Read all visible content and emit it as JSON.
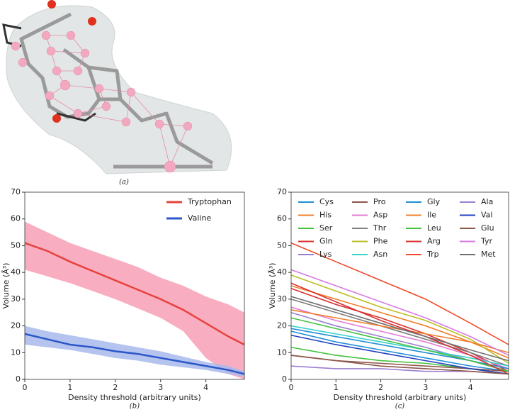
{
  "panel_a": {
    "caption": "(a)"
  },
  "chart_data": [
    {
      "type": "line",
      "caption": "(b)",
      "xlabel": "Density threshold (arbitrary units)",
      "ylabel": "Volume (Å³)",
      "xlim": [
        0,
        4.85
      ],
      "ylim": [
        0,
        70
      ],
      "xticks": [
        0,
        1,
        2,
        3,
        4
      ],
      "yticks": [
        0,
        10,
        20,
        30,
        40,
        50,
        60,
        70
      ],
      "legend": "upper right",
      "legend_ncol": 1,
      "x": [
        0,
        0.5,
        1,
        1.5,
        2,
        2.5,
        3,
        3.5,
        4,
        4.5,
        4.85
      ],
      "series": [
        {
          "name": "Tryptophan",
          "color": "#e8413c",
          "band_color": "#f7a0b5",
          "values": [
            51,
            48,
            44,
            40.5,
            37,
            33.5,
            30,
            26,
            21,
            16,
            13
          ],
          "upper": [
            59,
            55,
            51,
            48,
            45,
            42,
            38,
            35,
            31,
            28,
            25
          ],
          "lower": [
            41,
            38.5,
            36,
            33,
            30,
            26.5,
            23,
            18,
            8,
            2,
            0
          ]
        },
        {
          "name": "Valine",
          "color": "#2b57c8",
          "band_color": "#a8b8ec",
          "values": [
            17,
            15,
            13,
            12,
            10.5,
            9.5,
            8,
            6.5,
            5,
            3.5,
            2
          ],
          "upper": [
            20,
            18,
            16.5,
            15,
            13.5,
            12,
            10.5,
            8.5,
            6.5,
            5,
            3
          ],
          "lower": [
            13,
            12,
            11,
            9.5,
            8,
            7,
            5.5,
            4.5,
            3.5,
            2,
            1
          ]
        }
      ]
    },
    {
      "type": "line",
      "caption": "(c)",
      "xlabel": "Density threshold (arbitrary units)",
      "ylabel": "Volume (Å³)",
      "xlim": [
        0,
        4.85
      ],
      "ylim": [
        0,
        70
      ],
      "xticks": [
        0,
        1,
        2,
        3,
        4
      ],
      "yticks": [
        0,
        10,
        20,
        30,
        40,
        50,
        60,
        70
      ],
      "legend": "upper left",
      "legend_ncol": 4,
      "x": [
        0,
        1,
        2,
        3,
        4,
        4.85
      ],
      "series": [
        {
          "name": "Cys",
          "color": "#1f8fd6",
          "values": [
            18,
            14,
            11,
            8,
            5,
            3
          ]
        },
        {
          "name": "His",
          "color": "#f07f2b",
          "values": [
            35,
            30,
            25,
            20,
            14,
            8
          ]
        },
        {
          "name": "Ser",
          "color": "#44c23e",
          "values": [
            12,
            9,
            7,
            6,
            4,
            2
          ]
        },
        {
          "name": "Gln",
          "color": "#d8302e",
          "values": [
            34,
            28,
            23,
            17,
            10,
            3
          ]
        },
        {
          "name": "Lys",
          "color": "#9b7fd1",
          "values": [
            25,
            20,
            16,
            12,
            7,
            3
          ]
        },
        {
          "name": "Pro",
          "color": "#8c564b",
          "values": [
            9,
            7,
            6,
            5,
            4,
            3
          ]
        },
        {
          "name": "Asp",
          "color": "#e37bd6",
          "values": [
            27,
            22,
            18,
            14,
            9,
            4
          ]
        },
        {
          "name": "Thr",
          "color": "#7f7f7f",
          "values": [
            30,
            25,
            20,
            15,
            10,
            5
          ]
        },
        {
          "name": "Phe",
          "color": "#bcbd22",
          "values": [
            39,
            33,
            27,
            22,
            15,
            6
          ]
        },
        {
          "name": "Asn",
          "color": "#37d3c8",
          "values": [
            20,
            17,
            14,
            11,
            8,
            5
          ]
        },
        {
          "name": "Gly",
          "color": "#1f8fd6",
          "values": [
            19,
            16,
            13,
            10,
            7,
            4
          ]
        },
        {
          "name": "Ile",
          "color": "#f07f2b",
          "values": [
            26,
            23,
            20,
            17,
            14,
            10
          ]
        },
        {
          "name": "Leu",
          "color": "#44c23e",
          "values": [
            23,
            19,
            15,
            11,
            7,
            3
          ]
        },
        {
          "name": "Arg",
          "color": "#d8302e",
          "values": [
            36,
            29,
            22,
            16,
            9,
            2
          ]
        },
        {
          "name": "Trp",
          "color": "#f04a2a",
          "values": [
            51,
            44,
            37,
            30,
            21,
            13
          ]
        },
        {
          "name": "Ala",
          "color": "#9b7fd1",
          "values": [
            5,
            4,
            4,
            3,
            3,
            2
          ]
        },
        {
          "name": "Val",
          "color": "#2040c0",
          "values": [
            16.5,
            13,
            10,
            7,
            4,
            2
          ]
        },
        {
          "name": "Glu",
          "color": "#8c564b",
          "values": [
            9,
            7,
            5,
            4,
            3,
            2
          ]
        },
        {
          "name": "Tyr",
          "color": "#d57be0",
          "values": [
            41,
            35,
            29,
            23,
            16,
            9
          ]
        },
        {
          "name": "Met",
          "color": "#6f6f6f",
          "values": [
            31,
            26,
            21,
            16,
            11,
            7
          ]
        }
      ]
    }
  ]
}
